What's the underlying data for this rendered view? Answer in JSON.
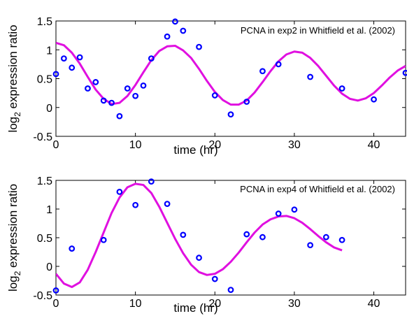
{
  "chart_data": [
    {
      "type": "scatter",
      "legend_text": "PCNA in exp2 in Whitfield et al. (2002)",
      "legend_position": "top-right",
      "xlabel": "time (hr)",
      "ylabel_main": "log",
      "ylabel_sub": "2",
      "ylabel_rest": " expression ratio",
      "xlim": [
        0,
        44
      ],
      "ylim": [
        -0.5,
        1.5
      ],
      "xticks": [
        0,
        10,
        20,
        30,
        40
      ],
      "xtick_labels": [
        "0",
        "10",
        "20",
        "30",
        "40"
      ],
      "yticks": [
        -0.5,
        0,
        0.5,
        1,
        1.5
      ],
      "ytick_labels": [
        "-0.5",
        "0",
        "0.5",
        "1",
        "1.5"
      ],
      "grid": false,
      "marker_color": "#0000ff",
      "curve_color": "#e010e0",
      "points": [
        [
          0,
          0.58
        ],
        [
          1,
          0.85
        ],
        [
          2,
          0.69
        ],
        [
          3,
          0.87
        ],
        [
          4,
          0.33
        ],
        [
          5,
          0.44
        ],
        [
          6,
          0.12
        ],
        [
          7,
          0.08
        ],
        [
          8,
          -0.15
        ],
        [
          9,
          0.33
        ],
        [
          10,
          0.2
        ],
        [
          11,
          0.38
        ],
        [
          12,
          0.85
        ],
        [
          14,
          1.23
        ],
        [
          15,
          1.49
        ],
        [
          16,
          1.33
        ],
        [
          18,
          1.05
        ],
        [
          20,
          0.21
        ],
        [
          22,
          -0.12
        ],
        [
          24,
          0.1
        ],
        [
          26,
          0.63
        ],
        [
          28,
          0.75
        ],
        [
          32,
          0.53
        ],
        [
          36,
          0.33
        ],
        [
          40,
          0.14
        ],
        [
          44,
          0.6
        ]
      ],
      "curve": [
        [
          0,
          1.12
        ],
        [
          1,
          1.08
        ],
        [
          2,
          0.95
        ],
        [
          3,
          0.76
        ],
        [
          4,
          0.53
        ],
        [
          5,
          0.31
        ],
        [
          6,
          0.15
        ],
        [
          7,
          0.06
        ],
        [
          8,
          0.08
        ],
        [
          9,
          0.2
        ],
        [
          10,
          0.39
        ],
        [
          11,
          0.61
        ],
        [
          12,
          0.82
        ],
        [
          13,
          0.98
        ],
        [
          14,
          1.06
        ],
        [
          15,
          1.07
        ],
        [
          16,
          0.99
        ],
        [
          17,
          0.86
        ],
        [
          18,
          0.67
        ],
        [
          19,
          0.46
        ],
        [
          20,
          0.27
        ],
        [
          21,
          0.13
        ],
        [
          22,
          0.05
        ],
        [
          23,
          0.05
        ],
        [
          24,
          0.12
        ],
        [
          25,
          0.26
        ],
        [
          26,
          0.44
        ],
        [
          27,
          0.63
        ],
        [
          28,
          0.8
        ],
        [
          29,
          0.92
        ],
        [
          30,
          0.97
        ],
        [
          31,
          0.95
        ],
        [
          32,
          0.86
        ],
        [
          33,
          0.72
        ],
        [
          34,
          0.55
        ],
        [
          35,
          0.38
        ],
        [
          36,
          0.24
        ],
        [
          37,
          0.15
        ],
        [
          38,
          0.12
        ],
        [
          39,
          0.16
        ],
        [
          40,
          0.25
        ],
        [
          41,
          0.38
        ],
        [
          42,
          0.52
        ],
        [
          43,
          0.64
        ],
        [
          44,
          0.72
        ]
      ]
    },
    {
      "type": "scatter",
      "legend_text": "PCNA in exp4 of Whitfield et al. (2002)",
      "legend_position": "top-right",
      "xlabel": "time (hr)",
      "ylabel_main": "log",
      "ylabel_sub": "2",
      "ylabel_rest": " expression ratio",
      "xlim": [
        0,
        44
      ],
      "ylim": [
        -0.5,
        1.5
      ],
      "xticks": [
        0,
        10,
        20,
        30,
        40
      ],
      "xtick_labels": [
        "0",
        "10",
        "20",
        "30",
        "40"
      ],
      "yticks": [
        -0.5,
        0,
        0.5,
        1,
        1.5
      ],
      "ytick_labels": [
        "-0.5",
        "0",
        "0.5",
        "1",
        "1.5"
      ],
      "grid": false,
      "marker_color": "#0000ff",
      "curve_color": "#e010e0",
      "points": [
        [
          0,
          -0.42
        ],
        [
          2,
          0.31
        ],
        [
          6,
          0.46
        ],
        [
          8,
          1.3
        ],
        [
          10,
          1.07
        ],
        [
          12,
          1.48
        ],
        [
          14,
          1.09
        ],
        [
          16,
          0.55
        ],
        [
          18,
          0.15
        ],
        [
          20,
          -0.22
        ],
        [
          22,
          -0.41
        ],
        [
          24,
          0.56
        ],
        [
          26,
          0.51
        ],
        [
          28,
          0.92
        ],
        [
          30,
          0.99
        ],
        [
          32,
          0.37
        ],
        [
          34,
          0.51
        ],
        [
          36,
          0.46
        ]
      ],
      "curve": [
        [
          0,
          -0.13
        ],
        [
          1,
          -0.3
        ],
        [
          2,
          -0.36
        ],
        [
          3,
          -0.28
        ],
        [
          4,
          -0.06
        ],
        [
          5,
          0.25
        ],
        [
          6,
          0.59
        ],
        [
          7,
          0.93
        ],
        [
          8,
          1.2
        ],
        [
          9,
          1.38
        ],
        [
          10,
          1.44
        ],
        [
          11,
          1.42
        ],
        [
          12,
          1.28
        ],
        [
          13,
          1.04
        ],
        [
          14,
          0.76
        ],
        [
          15,
          0.48
        ],
        [
          16,
          0.23
        ],
        [
          17,
          0.03
        ],
        [
          18,
          -0.1
        ],
        [
          19,
          -0.15
        ],
        [
          20,
          -0.13
        ],
        [
          21,
          -0.05
        ],
        [
          22,
          0.08
        ],
        [
          23,
          0.24
        ],
        [
          24,
          0.42
        ],
        [
          25,
          0.59
        ],
        [
          26,
          0.73
        ],
        [
          27,
          0.82
        ],
        [
          28,
          0.87
        ],
        [
          29,
          0.88
        ],
        [
          30,
          0.84
        ],
        [
          31,
          0.76
        ],
        [
          32,
          0.65
        ],
        [
          33,
          0.53
        ],
        [
          34,
          0.42
        ],
        [
          35,
          0.33
        ],
        [
          36,
          0.28
        ]
      ]
    }
  ]
}
